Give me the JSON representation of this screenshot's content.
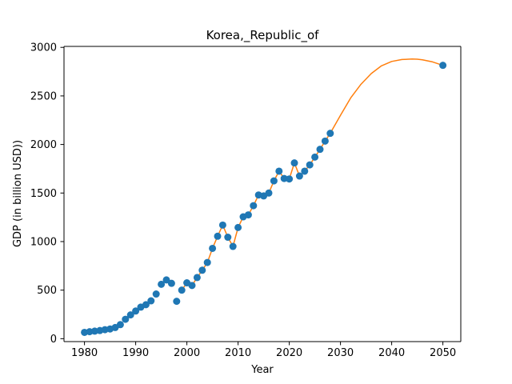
{
  "chart_data": {
    "type": "scatter",
    "title": "Korea,_Republic_of",
    "xlabel": "Year",
    "ylabel": "GDP (in billion USD))",
    "xlim": [
      1976,
      2053.5
    ],
    "ylim": [
      -30,
      3010
    ],
    "xticks": [
      1980,
      1990,
      2000,
      2010,
      2020,
      2030,
      2040,
      2050
    ],
    "yticks": [
      0,
      500,
      1000,
      1500,
      2000,
      2500,
      3000
    ],
    "grid": false,
    "colors": {
      "points": "#1f77b4",
      "fit": "#ff7f0e"
    },
    "series": [
      {
        "kind": "points",
        "x": [
          1980,
          1981,
          1982,
          1983,
          1984,
          1985,
          1986,
          1987,
          1988,
          1989,
          1990,
          1991,
          1992,
          1993,
          1994,
          1995,
          1996,
          1997,
          1998,
          1999,
          2000,
          2001,
          2002,
          2003,
          2004,
          2005,
          2006,
          2007,
          2008,
          2009,
          2010,
          2011,
          2012,
          2013,
          2014,
          2015,
          2016,
          2017,
          2018,
          2019,
          2020,
          2021,
          2022,
          2023,
          2024,
          2025,
          2026,
          2027,
          2028,
          2050
        ],
        "y": [
          65,
          72,
          78,
          84,
          93,
          100,
          115,
          145,
          200,
          245,
          285,
          325,
          350,
          390,
          460,
          560,
          605,
          570,
          385,
          500,
          575,
          548,
          630,
          705,
          785,
          930,
          1055,
          1170,
          1045,
          950,
          1145,
          1255,
          1275,
          1370,
          1480,
          1470,
          1500,
          1625,
          1725,
          1650,
          1645,
          1810,
          1675,
          1725,
          1790,
          1870,
          1950,
          2035,
          2115,
          2815
        ]
      },
      {
        "kind": "line",
        "x": [
          1999,
          2000,
          2001,
          2002,
          2003,
          2004,
          2005,
          2006,
          2007,
          2008,
          2009,
          2010,
          2011,
          2012,
          2013,
          2014,
          2015,
          2016,
          2017,
          2018,
          2019,
          2020,
          2021,
          2022,
          2023,
          2024,
          2025,
          2026,
          2027,
          2028,
          2030,
          2032,
          2034,
          2036,
          2038,
          2040,
          2042,
          2044,
          2045,
          2046,
          2048,
          2050
        ],
        "y": [
          500,
          575,
          548,
          630,
          705,
          785,
          930,
          1055,
          1170,
          1045,
          950,
          1145,
          1255,
          1275,
          1370,
          1480,
          1470,
          1500,
          1625,
          1725,
          1650,
          1645,
          1810,
          1675,
          1725,
          1790,
          1870,
          1950,
          2035,
          2115,
          2300,
          2480,
          2620,
          2730,
          2810,
          2855,
          2875,
          2880,
          2878,
          2872,
          2850,
          2815
        ]
      }
    ]
  }
}
